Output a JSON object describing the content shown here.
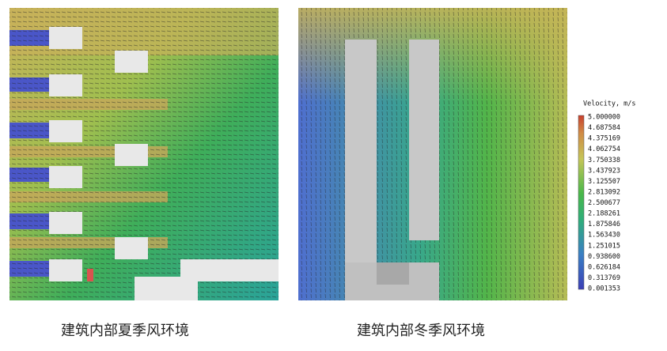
{
  "panels": [
    {
      "caption": "建筑内部夏季风环境"
    },
    {
      "caption": "建筑内部冬季风环境"
    }
  ],
  "legend": {
    "title": "Velocity, m/s",
    "labels": [
      "5.000000",
      "4.687584",
      "4.375169",
      "4.062754",
      "3.750338",
      "3.437923",
      "3.125507",
      "2.813092",
      "2.500677",
      "2.188261",
      "1.875846",
      "1.563430",
      "1.251015",
      "0.938600",
      "0.626184",
      "0.313769",
      "0.001353"
    ]
  }
}
